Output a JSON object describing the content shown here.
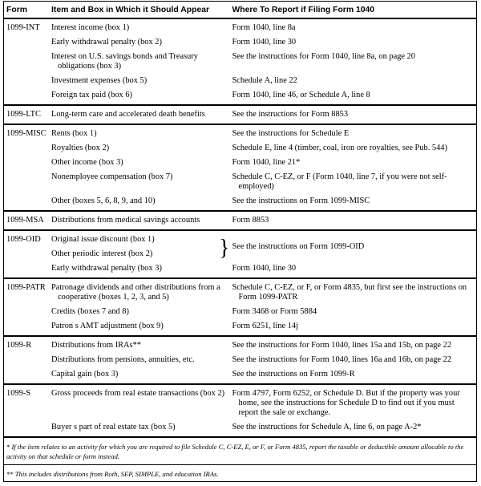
{
  "header": {
    "form": "Form",
    "item": "Item and Box in Which it Should Appear",
    "where": "Where To Report if Filing Form 1040"
  },
  "groups": [
    {
      "form": "1099-INT",
      "items": [
        {
          "item": "Interest income (box 1)",
          "where": "Form 1040, line 8a"
        },
        {
          "item": "Early withdrawal penalty (box 2)",
          "where": "Form 1040, line 30"
        },
        {
          "item": "Interest on U.S. savings bonds and Treasury obligations (box 3)",
          "where": "See the instructions for Form 1040, line 8a, on page 20"
        },
        {
          "item": "Investment expenses (box 5)",
          "where": "Schedule A, line 22"
        },
        {
          "item": "Foreign tax paid (box 6)",
          "where": "Form 1040, line 46, or Schedule A, line 8"
        }
      ]
    },
    {
      "form": "1099-LTC",
      "items": [
        {
          "item": "Long-term care and accelerated death benefits",
          "where": "See the instructions for Form 8853"
        }
      ]
    },
    {
      "form": "1099-MISC",
      "items": [
        {
          "item": "Rents (box 1)",
          "where": "See the instructions for Schedule E"
        },
        {
          "item": "Royalties (box 2)",
          "where": "Schedule E, line 4 (timber, coal, iron ore royalties, see Pub. 544)"
        },
        {
          "item": "Other income (box 3)",
          "where": "Form 1040, line 21*"
        },
        {
          "item": "Nonemployee compensation (box 7)",
          "where": "Schedule C, C-EZ, or F (Form 1040, line 7, if you were not self-employed)"
        },
        {
          "item": "Other (boxes 5, 6, 8, 9, and 10)",
          "where": "See the instructions on Form 1099-MISC"
        }
      ]
    },
    {
      "form": "1099-MSA",
      "items": [
        {
          "item": "Distributions from medical savings accounts",
          "where": "Form 8853"
        }
      ]
    },
    {
      "form": "1099-OID",
      "items": [
        {
          "item": "Original issue discount (box 1)",
          "where": "See the instructions on Form 1099-OID",
          "span": 2
        },
        {
          "item": "Other periodic interest (box 2)"
        },
        {
          "item": "Early withdrawal penalty (box 3)",
          "where": "Form 1040, line 30"
        }
      ]
    },
    {
      "form": "1099-PATR",
      "items": [
        {
          "item": "Patronage dividends and other distributions from a cooperative (boxes 1, 2, 3, and 5)",
          "where": "Schedule C, C-EZ, or F, or Form 4835, but first see the instructions on Form 1099-PATR"
        },
        {
          "item": "Credits (boxes 7 and 8)",
          "where": "Form 3468 or Form 5884"
        },
        {
          "item": "Patron s AMT adjustment (box 9)",
          "where": "Form 6251, line 14j"
        }
      ]
    },
    {
      "form": "1099-R",
      "items": [
        {
          "item": "Distributions from IRAs**",
          "where": "See the instructions for Form 1040, lines 15a and 15b, on page 22"
        },
        {
          "item": "Distributions from pensions, annuities, etc.",
          "where": "See the instructions for Form 1040, lines 16a and 16b, on page 22"
        },
        {
          "item": "Capital gain (box 3)",
          "where": "See the instructions on Form 1099-R"
        }
      ]
    },
    {
      "form": "1099-S",
      "items": [
        {
          "item": "Gross proceeds from real estate transactions (box 2)",
          "where": "Form 4797, Form 6252, or Schedule D. But if the property was your home, see the instructions for Schedule D to find out if you must report the sale or exchange."
        },
        {
          "item": "Buyer s part of real estate tax (box 5)",
          "where": "See the instructions for Schedule A, line 6, on page A-2*"
        }
      ]
    }
  ],
  "footnotes": [
    "* If the item relates to an activity for which you are required to file Schedule C, C-EZ, E, or F, or Form 4835, report the taxable or deductible amount allocable to the activity on that schedule or form instead.",
    "** This includes distributions from Roth, SEP, SIMPLE, and education IRAs."
  ]
}
